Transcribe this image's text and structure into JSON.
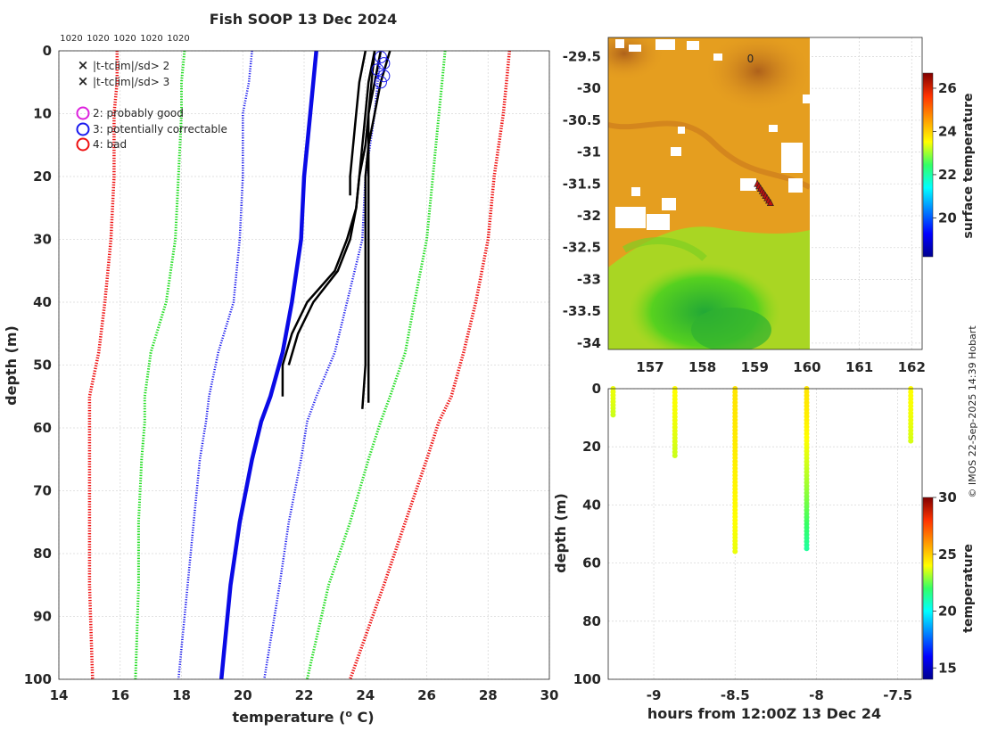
{
  "page": {
    "title": "Fish SOOP 13 Dec 2024",
    "credit": "© IMOS 22-Sep-2025 14:39 Hobart",
    "clim_labels": [
      "1020",
      "1020",
      "1020",
      "1020",
      "1020"
    ]
  },
  "legend": {
    "items": [
      {
        "symbol": "x",
        "color": "#22dd22",
        "label": "|t-tclim|/sd> 2"
      },
      {
        "symbol": "x",
        "color": "#ee1111",
        "label": "|t-tclim|/sd> 3"
      },
      {
        "symbol": "o",
        "color": "#dd22dd",
        "label": "2: probably good"
      },
      {
        "symbol": "o",
        "color": "#1a1aee",
        "label": "3: potentially correctable"
      },
      {
        "symbol": "o",
        "color": "#ee1111",
        "label": "4: bad"
      }
    ]
  },
  "colors": {
    "profile": "#000000",
    "clim_mean": "#0a0ae6",
    "sd1": "#1a1aee",
    "sd2": "#22dd22",
    "sd3": "#ee1111"
  },
  "chart_data": [
    {
      "type": "line",
      "name": "profile-chart",
      "title": "Fish SOOP 13 Dec 2024",
      "xlabel": "temperature (° C)",
      "xlabel_main": "temperature (",
      "xlabel_sup": "o",
      "xlabel_tail": " C)",
      "ylabel": "depth (m)",
      "xlim": [
        14,
        30
      ],
      "ylim": [
        100,
        0
      ],
      "xticks": [
        "14",
        "16",
        "18",
        "20",
        "22",
        "24",
        "26",
        "28",
        "30"
      ],
      "yticks": [
        "0",
        "10",
        "20",
        "30",
        "40",
        "50",
        "60",
        "70",
        "80",
        "90",
        "100"
      ],
      "depth": [
        0,
        5,
        10,
        20,
        30,
        40,
        48,
        55,
        59,
        65,
        75,
        85,
        100
      ],
      "climatology": [
        {
          "name": "clim-mean",
          "values": [
            22.4,
            22.3,
            22.2,
            22.0,
            21.9,
            21.6,
            21.3,
            20.9,
            20.6,
            20.3,
            19.9,
            19.6,
            19.3
          ]
        },
        {
          "name": "plus-1sd",
          "values": [
            24.5,
            24.4,
            24.3,
            24.0,
            23.9,
            23.4,
            23.0,
            22.4,
            22.1,
            21.9,
            21.5,
            21.2,
            20.7
          ]
        },
        {
          "name": "minus-1sd",
          "values": [
            20.3,
            20.2,
            20.0,
            20.0,
            19.9,
            19.7,
            19.2,
            18.9,
            18.8,
            18.6,
            18.4,
            18.2,
            17.9
          ]
        },
        {
          "name": "plus-2sd",
          "values": [
            26.6,
            26.5,
            26.4,
            26.2,
            26.0,
            25.6,
            25.3,
            24.8,
            24.5,
            24.1,
            23.5,
            22.8,
            22.1
          ]
        },
        {
          "name": "minus-2sd",
          "values": [
            18.1,
            18.0,
            18.0,
            17.9,
            17.8,
            17.5,
            17.0,
            16.8,
            16.8,
            16.7,
            16.6,
            16.6,
            16.5
          ]
        },
        {
          "name": "plus-3sd",
          "values": [
            28.7,
            28.6,
            28.5,
            28.2,
            28.0,
            27.6,
            27.2,
            26.8,
            26.4,
            26.0,
            25.3,
            24.6,
            23.5
          ]
        },
        {
          "name": "minus-3sd",
          "values": [
            15.9,
            15.9,
            15.8,
            15.8,
            15.7,
            15.5,
            15.3,
            15.0,
            15.0,
            15.0,
            15.0,
            15.0,
            15.1
          ]
        }
      ],
      "profiles": [
        {
          "name": "profile-1",
          "depth": [
            0,
            5,
            10,
            15,
            20,
            23
          ],
          "values": [
            24.0,
            23.8,
            23.7,
            23.6,
            23.5,
            23.5
          ]
        },
        {
          "name": "profile-2",
          "depth": [
            0,
            5,
            10,
            15,
            20,
            25,
            30,
            35,
            40,
            45,
            50,
            55
          ],
          "values": [
            24.3,
            24.1,
            24.0,
            23.9,
            23.8,
            23.7,
            23.4,
            23.0,
            22.1,
            21.6,
            21.3,
            21.3
          ]
        },
        {
          "name": "profile-3",
          "depth": [
            0,
            5,
            10,
            15,
            20,
            25,
            30,
            35,
            40,
            45,
            50
          ],
          "values": [
            24.5,
            24.3,
            24.1,
            24.0,
            23.8,
            23.7,
            23.5,
            23.1,
            22.3,
            21.8,
            21.5
          ]
        },
        {
          "name": "profile-4",
          "depth": [
            0,
            5,
            10,
            15,
            20,
            30,
            40,
            50,
            57
          ],
          "values": [
            24.8,
            24.5,
            24.3,
            24.1,
            24.0,
            24.0,
            24.0,
            24.0,
            23.9
          ]
        },
        {
          "name": "profile-5",
          "depth": [
            0,
            5,
            10,
            15,
            20,
            30,
            40,
            50,
            56
          ],
          "values": [
            24.3,
            24.2,
            24.1,
            24.1,
            24.1,
            24.1,
            24.1,
            24.1,
            24.1
          ]
        }
      ],
      "flags": [
        {
          "depth": 1,
          "temp": 24.5
        },
        {
          "depth": 2,
          "temp": 24.6
        },
        {
          "depth": 3,
          "temp": 24.4
        },
        {
          "depth": 4,
          "temp": 24.6
        },
        {
          "depth": 5,
          "temp": 24.5
        }
      ]
    },
    {
      "type": "heatmap",
      "name": "sst-map",
      "xlim": [
        156.2,
        162.2
      ],
      "ylim": [
        -34.1,
        -29.2
      ],
      "xticks": [
        "157",
        "158",
        "159",
        "160",
        "161",
        "162"
      ],
      "yticks": [
        "-29.5",
        "-30",
        "-30.5",
        "-31",
        "-31.5",
        "-32",
        "-32.5",
        "-33",
        "-33.5",
        "-34"
      ],
      "data_extent_lon": [
        156.2,
        160.0
      ],
      "colorbar": {
        "label": "surface temperature",
        "ticks": [
          "20",
          "22",
          "24",
          "26"
        ],
        "range": [
          18.2,
          26.7
        ]
      },
      "marker_label": "0",
      "marker_label_pos": [
        158.0,
        -29.45
      ],
      "track": [
        {
          "lon": 159.05,
          "lat": -31.5
        },
        {
          "lon": 159.3,
          "lat": -31.8
        }
      ]
    },
    {
      "type": "scatter",
      "name": "time-depth",
      "xlabel": "hours from 12:00Z 13 Dec 24",
      "ylabel": "depth (m)",
      "xlim": [
        -9.28,
        -7.35
      ],
      "ylim": [
        100,
        0
      ],
      "xticks": [
        "-9",
        "-8.5",
        "-8",
        "-7.5"
      ],
      "yticks": [
        "0",
        "20",
        "40",
        "60",
        "80",
        "100"
      ],
      "colorbar": {
        "label": "temperature",
        "ticks": [
          "15",
          "20",
          "25",
          "30"
        ],
        "range": [
          14,
          30
        ]
      },
      "drops": [
        {
          "hours": -9.25,
          "max_depth": 9,
          "temp_top": 23.8,
          "temp_bottom": 23.5
        },
        {
          "hours": -8.87,
          "max_depth": 23,
          "temp_top": 24.0,
          "temp_bottom": 23.5
        },
        {
          "hours": -8.5,
          "max_depth": 56,
          "temp_top": 24.5,
          "temp_bottom": 23.8
        },
        {
          "hours": -8.06,
          "max_depth": 55,
          "temp_top": 24.5,
          "temp_bottom": 21.3
        },
        {
          "hours": -7.42,
          "max_depth": 18,
          "temp_top": 24.0,
          "temp_bottom": 23.6
        }
      ]
    }
  ]
}
